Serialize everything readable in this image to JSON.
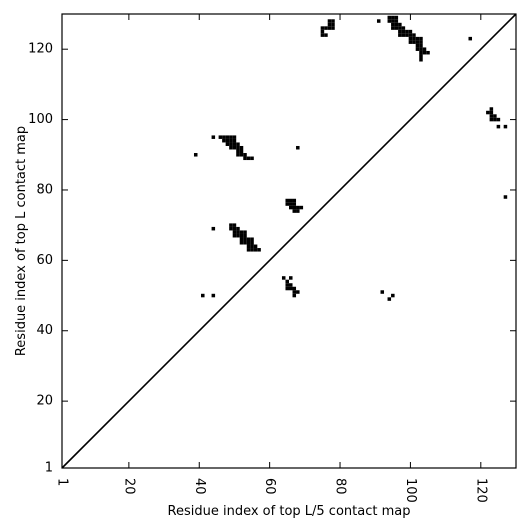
{
  "chart_data": {
    "type": "scatter",
    "xlabel": "Residue index of top L/5 contact map",
    "ylabel": "Residue index of top L contact map",
    "xlim": [
      1,
      130
    ],
    "ylim": [
      1,
      130
    ],
    "x_ticks": [
      1,
      20,
      40,
      60,
      80,
      100,
      120
    ],
    "y_ticks": [
      1,
      20,
      40,
      60,
      80,
      100,
      120
    ],
    "x_tick_labels": [
      "1",
      "20",
      "40",
      "60",
      "80",
      "100",
      "120"
    ],
    "y_tick_labels": [
      "1",
      "20",
      "40",
      "60",
      "80",
      "100",
      "120"
    ],
    "x_tick_rotation_deg": 90,
    "grid": false,
    "diagonal_line": true,
    "marker": "filled-square",
    "color": "#000000",
    "upper_triangle_points": [
      [
        77,
        128
      ],
      [
        78,
        128
      ],
      [
        77,
        127
      ],
      [
        78,
        127
      ],
      [
        75,
        126
      ],
      [
        76,
        126
      ],
      [
        77,
        126
      ],
      [
        78,
        126
      ],
      [
        75,
        125
      ],
      [
        75,
        124
      ],
      [
        76,
        124
      ],
      [
        91,
        128
      ],
      [
        94,
        129
      ],
      [
        95,
        129
      ],
      [
        96,
        129
      ],
      [
        94,
        128
      ],
      [
        95,
        128
      ],
      [
        96,
        128
      ],
      [
        95,
        127
      ],
      [
        96,
        127
      ],
      [
        97,
        127
      ],
      [
        95,
        126
      ],
      [
        96,
        126
      ],
      [
        97,
        126
      ],
      [
        98,
        126
      ],
      [
        97,
        125
      ],
      [
        98,
        125
      ],
      [
        99,
        125
      ],
      [
        100,
        125
      ],
      [
        97,
        124
      ],
      [
        98,
        124
      ],
      [
        99,
        124
      ],
      [
        100,
        124
      ],
      [
        101,
        124
      ],
      [
        100,
        123
      ],
      [
        101,
        123
      ],
      [
        102,
        123
      ],
      [
        103,
        123
      ],
      [
        100,
        122
      ],
      [
        101,
        122
      ],
      [
        102,
        122
      ],
      [
        103,
        122
      ],
      [
        102,
        121
      ],
      [
        103,
        121
      ],
      [
        102,
        120
      ],
      [
        103,
        120
      ],
      [
        104,
        120
      ],
      [
        103,
        119
      ],
      [
        104,
        119
      ],
      [
        105,
        119
      ],
      [
        103,
        118
      ],
      [
        103,
        117
      ],
      [
        117,
        123
      ]
    ],
    "lower_triangle_points": [
      [
        44,
        95
      ],
      [
        46,
        95
      ],
      [
        47,
        95
      ],
      [
        48,
        95
      ],
      [
        49,
        95
      ],
      [
        50,
        95
      ],
      [
        47,
        94
      ],
      [
        48,
        94
      ],
      [
        49,
        94
      ],
      [
        50,
        94
      ],
      [
        48,
        93
      ],
      [
        49,
        93
      ],
      [
        50,
        93
      ],
      [
        51,
        93
      ],
      [
        49,
        92
      ],
      [
        50,
        92
      ],
      [
        51,
        92
      ],
      [
        52,
        92
      ],
      [
        51,
        91
      ],
      [
        52,
        91
      ],
      [
        51,
        90
      ],
      [
        52,
        90
      ],
      [
        53,
        90
      ],
      [
        53,
        89
      ],
      [
        54,
        89
      ],
      [
        55,
        89
      ],
      [
        39,
        90
      ],
      [
        68,
        92
      ],
      [
        65,
        77
      ],
      [
        66,
        77
      ],
      [
        67,
        77
      ],
      [
        65,
        76
      ],
      [
        66,
        76
      ],
      [
        67,
        76
      ],
      [
        66,
        75
      ],
      [
        67,
        75
      ],
      [
        68,
        75
      ],
      [
        69,
        75
      ],
      [
        67,
        74
      ],
      [
        68,
        74
      ],
      [
        44,
        69
      ],
      [
        49,
        70
      ],
      [
        50,
        70
      ],
      [
        49,
        69
      ],
      [
        50,
        69
      ],
      [
        51,
        69
      ],
      [
        50,
        68
      ],
      [
        51,
        68
      ],
      [
        52,
        68
      ],
      [
        53,
        68
      ],
      [
        50,
        67
      ],
      [
        51,
        67
      ],
      [
        52,
        67
      ],
      [
        53,
        67
      ],
      [
        52,
        66
      ],
      [
        53,
        66
      ],
      [
        54,
        66
      ],
      [
        55,
        66
      ],
      [
        52,
        65
      ],
      [
        53,
        65
      ],
      [
        54,
        65
      ],
      [
        55,
        65
      ],
      [
        54,
        64
      ],
      [
        55,
        64
      ],
      [
        56,
        64
      ],
      [
        54,
        63
      ],
      [
        55,
        63
      ],
      [
        56,
        63
      ],
      [
        57,
        63
      ],
      [
        64,
        55
      ],
      [
        66,
        55
      ],
      [
        65,
        54
      ],
      [
        65,
        53
      ],
      [
        66,
        53
      ],
      [
        65,
        52
      ],
      [
        66,
        52
      ],
      [
        67,
        52
      ],
      [
        67,
        51
      ],
      [
        68,
        51
      ],
      [
        67,
        50
      ],
      [
        41,
        50
      ],
      [
        44,
        50
      ],
      [
        92,
        51
      ],
      [
        94,
        49
      ],
      [
        95,
        50
      ],
      [
        122,
        102
      ],
      [
        123,
        102
      ],
      [
        123,
        103
      ],
      [
        123,
        101
      ],
      [
        124,
        101
      ],
      [
        123,
        100
      ],
      [
        124,
        100
      ],
      [
        125,
        100
      ],
      [
        125,
        98
      ],
      [
        127,
        98
      ],
      [
        127,
        78
      ]
    ]
  }
}
